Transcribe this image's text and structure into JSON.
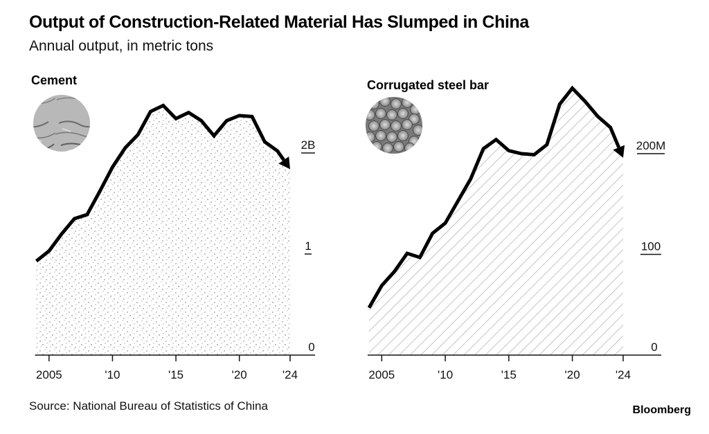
{
  "header": {
    "title": "Output of Construction-Related Material Has Slumped in China",
    "subtitle": "Annual output, in metric tons"
  },
  "footer": {
    "source": "Source: National Bureau of Statistics of China",
    "brand": "Bloomberg"
  },
  "colors": {
    "line": "#000000",
    "fill_texture": "#9a9a9a",
    "axis": "#111111"
  },
  "chart_data": [
    {
      "type": "area",
      "title": "Cement",
      "icon": "cement-texture-photo",
      "fill_pattern": "stipple",
      "xlabel": "",
      "ylabel": "",
      "unit": "billion metric tons",
      "x": [
        2004,
        2005,
        2006,
        2007,
        2008,
        2009,
        2010,
        2011,
        2012,
        2013,
        2014,
        2015,
        2016,
        2017,
        2018,
        2019,
        2020,
        2021,
        2022,
        2023,
        2024
      ],
      "values": [
        0.93,
        1.03,
        1.2,
        1.35,
        1.39,
        1.62,
        1.86,
        2.05,
        2.18,
        2.41,
        2.47,
        2.34,
        2.4,
        2.32,
        2.17,
        2.32,
        2.37,
        2.36,
        2.11,
        2.02,
        1.84
      ],
      "xlim": [
        2004,
        2024
      ],
      "ylim": [
        0,
        2.7
      ],
      "x_ticks": [
        2005,
        2010,
        2015,
        2020,
        2024
      ],
      "x_tick_labels": [
        "2005",
        "'10",
        "'15",
        "'20",
        "'24"
      ],
      "y_ticks": [
        0,
        1,
        2
      ],
      "y_tick_labels": [
        "0",
        "1",
        "2B"
      ],
      "y_axis_side": "right",
      "grid": false,
      "end_arrow": true
    },
    {
      "type": "area",
      "title": "Corrugated steel bar",
      "icon": "steel-bars-photo",
      "fill_pattern": "diagonal-hatch",
      "xlabel": "",
      "ylabel": "",
      "unit": "million metric tons",
      "x": [
        2004,
        2005,
        2006,
        2007,
        2008,
        2009,
        2010,
        2011,
        2012,
        2013,
        2014,
        2015,
        2016,
        2017,
        2018,
        2019,
        2020,
        2021,
        2022,
        2023,
        2024
      ],
      "values": [
        47,
        69,
        83,
        101,
        97,
        121,
        131,
        153,
        175,
        205,
        214,
        203,
        200,
        199,
        209,
        249,
        265,
        252,
        237,
        226,
        196
      ],
      "xlim": [
        2004,
        2024
      ],
      "ylim": [
        0,
        270
      ],
      "x_ticks": [
        2005,
        2010,
        2015,
        2020,
        2024
      ],
      "x_tick_labels": [
        "2005",
        "'10",
        "'15",
        "'20",
        "'24"
      ],
      "y_ticks": [
        0,
        100,
        200
      ],
      "y_tick_labels": [
        "0",
        "100",
        "200M"
      ],
      "y_axis_side": "right",
      "grid": false,
      "end_arrow": true
    }
  ]
}
